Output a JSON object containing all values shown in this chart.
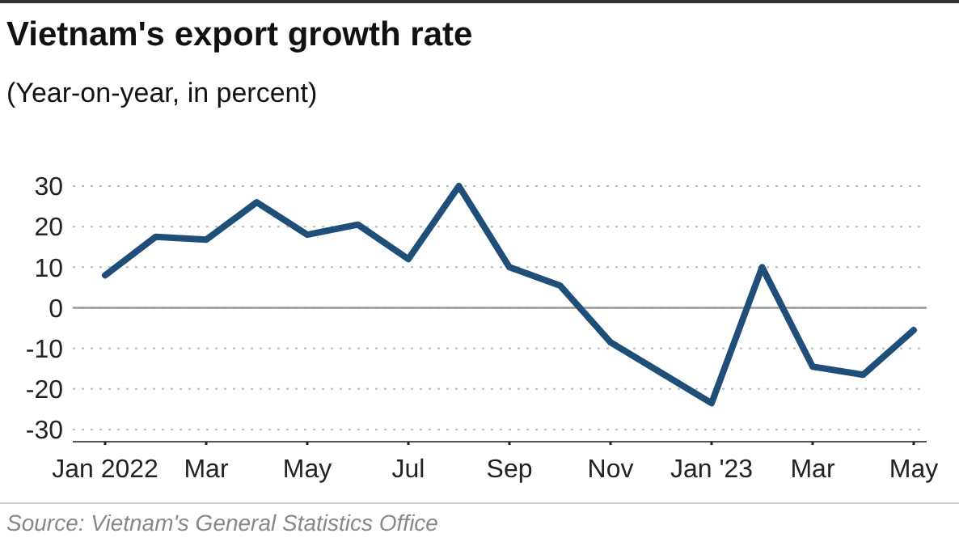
{
  "chart_data": {
    "type": "line",
    "title": "Vietnam's export growth rate",
    "subtitle": "(Year-on-year, in percent)",
    "categories": [
      "Jan 2022",
      null,
      "Mar",
      null,
      "May",
      null,
      "Jul",
      null,
      "Sep",
      null,
      "Nov",
      null,
      "Jan '23",
      null,
      "Mar",
      null,
      "May"
    ],
    "series": [
      {
        "color": "#1f4e79",
        "values": [
          8,
          17.5,
          16.8,
          26,
          18,
          20.5,
          12,
          30,
          10,
          5.5,
          -8.5,
          -16,
          -23.5,
          10,
          -14.5,
          -16.5,
          -5.5
        ]
      }
    ],
    "ylim": [
      -33,
      30
    ],
    "yticks": [
      -30,
      -20,
      -10,
      0,
      10,
      20,
      30
    ],
    "grid": "y",
    "marker": "none",
    "line_style": "solid",
    "ref_lines": [
      {
        "axis": "y",
        "value": 0,
        "color": "#999999"
      }
    ],
    "annotations": [
      "Source: Vietnam's General Statistics Office"
    ]
  }
}
